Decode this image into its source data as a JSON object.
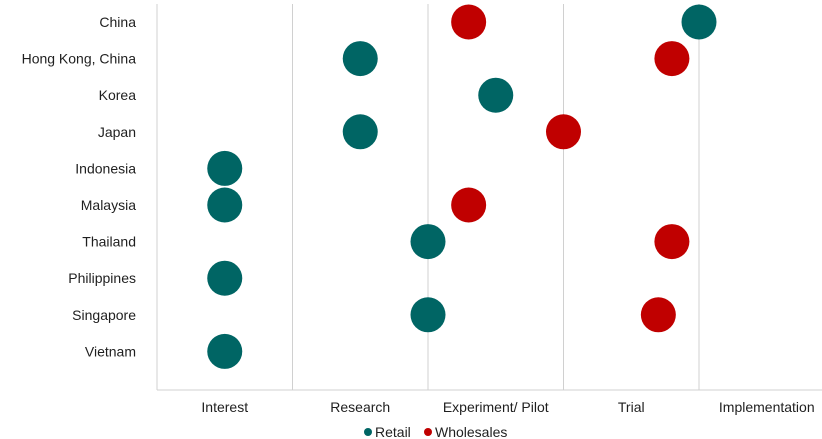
{
  "chart_data": {
    "type": "scatter",
    "title": "",
    "xlabel": "",
    "ylabel": "",
    "x_categories": [
      "Interest",
      "Research",
      "Experiment/ Pilot",
      "Trial",
      "Implementation"
    ],
    "y_categories": [
      "China",
      "Hong Kong, China",
      "Korea",
      "Japan",
      "Indonesia",
      "Malaysia",
      "Thailand",
      "Philippines",
      "Singapore",
      "Vietnam"
    ],
    "grid": "vertical lines at stage boundaries",
    "legend": {
      "position": "bottom"
    },
    "series": [
      {
        "name": "Retail",
        "color": "#006564",
        "points": [
          {
            "y": "China",
            "x": 4.0
          },
          {
            "y": "Hong Kong, China",
            "x": 1.5
          },
          {
            "y": "Korea",
            "x": 2.5
          },
          {
            "y": "Japan",
            "x": 1.5
          },
          {
            "y": "Indonesia",
            "x": 0.5
          },
          {
            "y": "Malaysia",
            "x": 0.5
          },
          {
            "y": "Thailand",
            "x": 2.0
          },
          {
            "y": "Philippines",
            "x": 0.5
          },
          {
            "y": "Singapore",
            "x": 2.0
          },
          {
            "y": "Vietnam",
            "x": 0.5
          }
        ]
      },
      {
        "name": "Wholesales",
        "color": "#c00000",
        "points": [
          {
            "y": "China",
            "x": 2.3
          },
          {
            "y": "Hong Kong, China",
            "x": 3.8
          },
          {
            "y": "Japan",
            "x": 3.0
          },
          {
            "y": "Malaysia",
            "x": 2.3
          },
          {
            "y": "Thailand",
            "x": 3.8
          },
          {
            "y": "Singapore",
            "x": 3.7
          }
        ]
      }
    ]
  },
  "legend_items": [
    {
      "label": "Retail",
      "color": "#006564"
    },
    {
      "label": "Wholesales",
      "color": "#c00000"
    }
  ]
}
